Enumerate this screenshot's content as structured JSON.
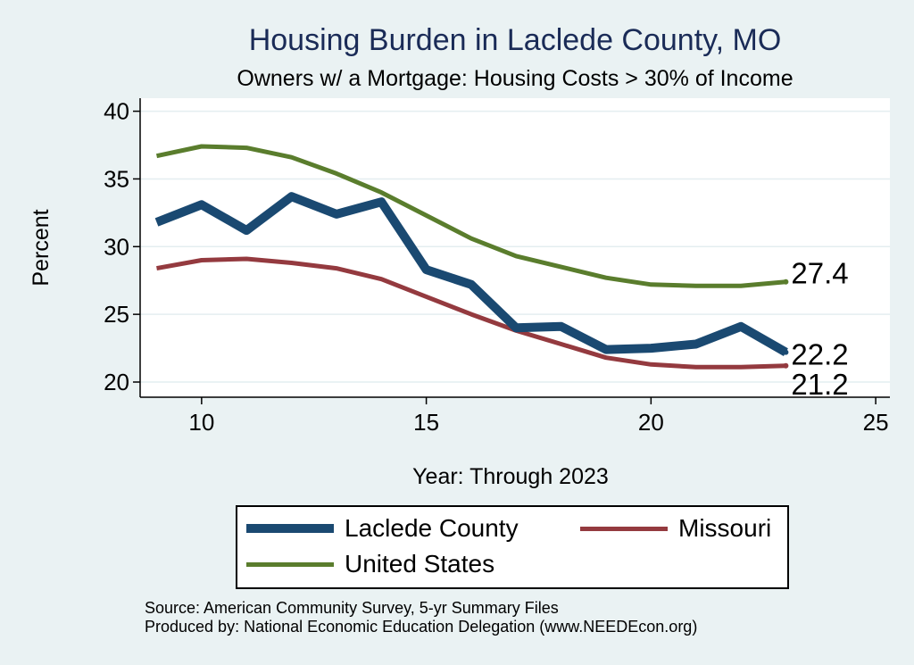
{
  "chart_data": {
    "type": "line",
    "title": "Housing Burden in Laclede County, MO",
    "subtitle": "Owners w/ a Mortgage: Housing Costs > 30% of Income",
    "xlabel": "Year: Through 2023",
    "ylabel": "Percent",
    "xlim": [
      9,
      25
    ],
    "ylim": [
      19.5,
      41
    ],
    "xticks": [
      10,
      15,
      20,
      25
    ],
    "yticks": [
      20,
      25,
      30,
      35,
      40
    ],
    "grid": true,
    "legend_position": "bottom",
    "x": [
      9,
      10,
      11,
      12,
      13,
      14,
      15,
      16,
      17,
      18,
      19,
      20,
      21,
      22,
      23
    ],
    "series": [
      {
        "name": "Laclede County",
        "color": "#1a4971",
        "values": [
          31.8,
          33.1,
          31.2,
          33.7,
          32.4,
          33.3,
          28.3,
          27.2,
          24.0,
          24.1,
          22.4,
          22.5,
          22.8,
          24.1,
          22.2
        ],
        "end_label": "22.2"
      },
      {
        "name": "Missouri",
        "color": "#943a3f",
        "values": [
          28.4,
          29.0,
          29.1,
          28.8,
          28.4,
          27.6,
          26.3,
          25.0,
          23.8,
          22.8,
          21.8,
          21.3,
          21.1,
          21.1,
          21.2
        ],
        "end_label": "21.2"
      },
      {
        "name": "United States",
        "color": "#5a7d2d",
        "values": [
          36.7,
          37.4,
          37.3,
          36.6,
          35.4,
          34.0,
          32.3,
          30.6,
          29.3,
          28.5,
          27.7,
          27.2,
          27.1,
          27.1,
          27.4
        ],
        "end_label": "27.4"
      }
    ],
    "source_lines": [
      "Source: American Community Survey, 5-yr Summary Files",
      "Produced by: National Economic Education Delegation (www.NEEDEcon.org)"
    ]
  }
}
